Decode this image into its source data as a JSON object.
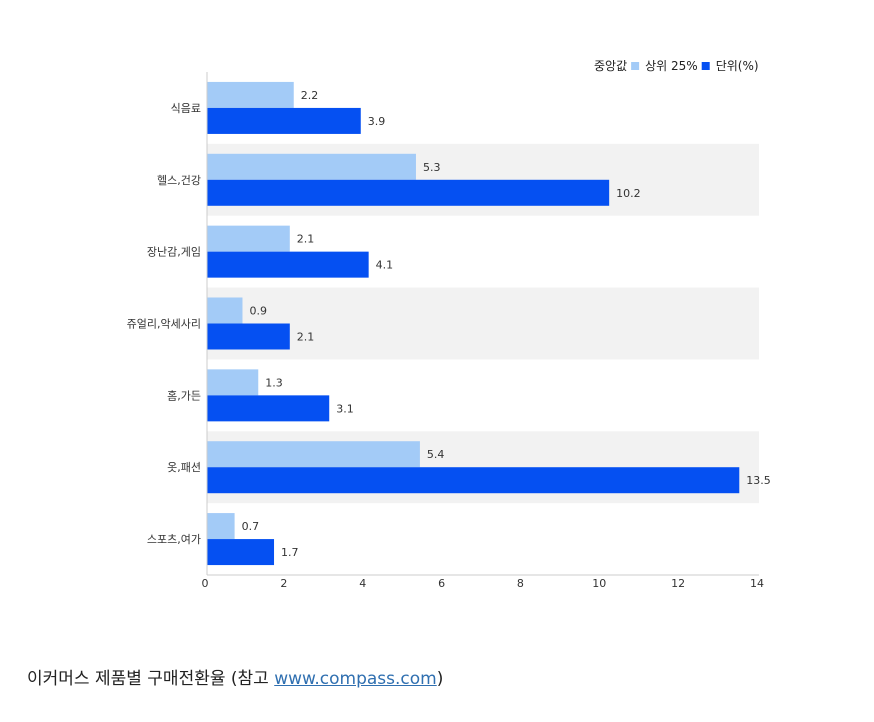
{
  "chart_data": {
    "type": "bar",
    "orientation": "horizontal",
    "categories": [
      "식음료",
      "헬스,건강",
      "장난감,게임",
      "쥬얼리,악세사리",
      "홈,가든",
      "옷,패션",
      "스포츠,여가"
    ],
    "series": [
      {
        "name": "중앙값",
        "color": "#a3cbf7",
        "values": [
          2.2,
          5.3,
          2.1,
          0.9,
          1.3,
          5.4,
          0.7
        ]
      },
      {
        "name": "상위 25%",
        "color": "#0550f2",
        "values": [
          3.9,
          10.2,
          4.1,
          2.1,
          3.1,
          13.5,
          1.7
        ]
      }
    ],
    "unit_label": "단위(%)",
    "xlim": [
      0,
      14
    ],
    "xticks": [
      0,
      2,
      4,
      6,
      8,
      10,
      12,
      14
    ],
    "legend_position": "top-right",
    "banded_rows": true
  },
  "caption": {
    "text": "이커머스 제품별 구매전환율 (참고 ",
    "link": "www.compass.com",
    "suffix": ")"
  }
}
